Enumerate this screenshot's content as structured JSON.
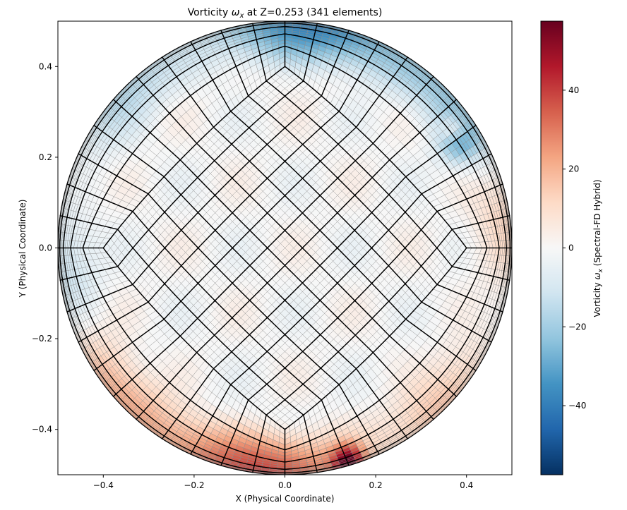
{
  "chart_data": {
    "type": "heatmap",
    "title": {
      "prefix": "Vorticity ",
      "symbol": "ω",
      "subscript": "x",
      "suffix": " at Z=0.253 (341 elements)"
    },
    "xlabel": "X (Physical Coordinate)",
    "ylabel": "Y (Physical Coordinate)",
    "xlim": [
      -0.5,
      0.5
    ],
    "ylim": [
      -0.5,
      0.5
    ],
    "xticks": [
      -0.4,
      -0.2,
      0.0,
      0.2,
      0.4
    ],
    "xtick_labels": [
      "−0.4",
      "−0.2",
      "0.0",
      "0.2",
      "0.4"
    ],
    "yticks": [
      -0.4,
      -0.2,
      0.0,
      0.2,
      0.4
    ],
    "ytick_labels": [
      "−0.4",
      "−0.2",
      "0.0",
      "0.2",
      "0.4"
    ],
    "colorbar": {
      "label_prefix": "Vorticity ",
      "label_symbol": "ω",
      "label_subscript": "x",
      "label_suffix": " (Spectral-FD Hybrid)",
      "vmin": -57.5,
      "vmax": 57.5,
      "ticks": [
        -40,
        -20,
        0,
        20,
        40
      ],
      "tick_labels": [
        "−40",
        "−20",
        "0",
        "20",
        "40"
      ],
      "colormap": "RdBu_r",
      "colormap_stops": [
        "#053061",
        "#2166ac",
        "#4393c3",
        "#92c5de",
        "#d1e5f0",
        "#f7f7f7",
        "#fddbc7",
        "#f4a582",
        "#d6604d",
        "#b2182b",
        "#67001f"
      ]
    },
    "mesh": {
      "domain": "circle",
      "radius": 0.5,
      "elements": 341,
      "inner_block": [
        11,
        11
      ],
      "rings": 5,
      "elements_per_ring": 44,
      "subdivisions_per_element": 4
    },
    "field_features": {
      "outer_top": "negative (blue), about -35",
      "outer_bottom": "positive (red), about +30",
      "interior": "near zero, weak alternating",
      "peak": {
        "x": 0.14,
        "y": -0.47,
        "value": 55
      }
    }
  }
}
